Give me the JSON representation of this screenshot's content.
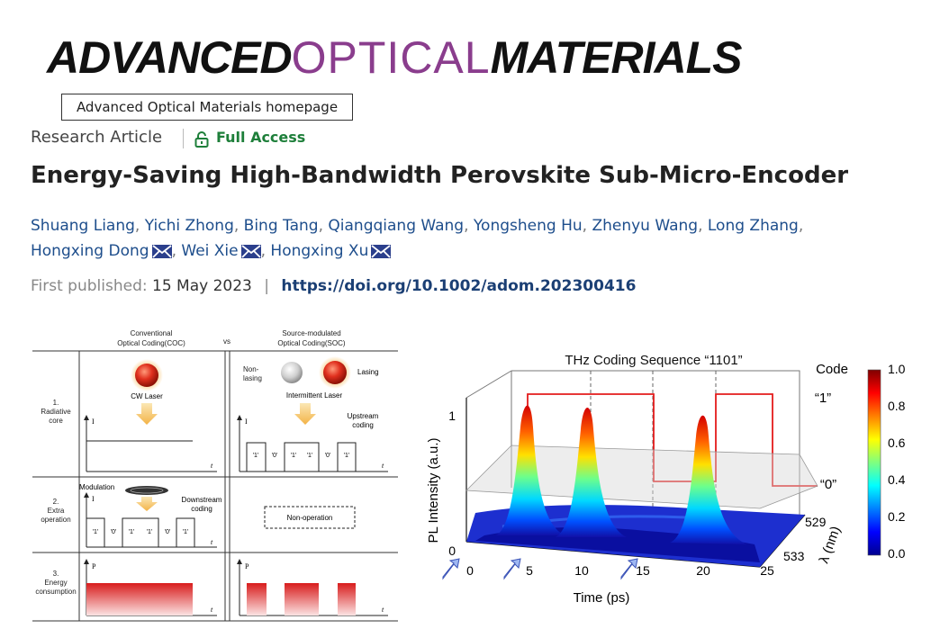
{
  "logo": {
    "part1": "ADVANCED",
    "part2": "OPTICAL",
    "part3": "MATERIALS"
  },
  "homepage_button": "Advanced Optical Materials homepage",
  "article_type": "Research Article",
  "access": "Full Access",
  "title": "Energy-Saving High-Bandwidth Perovskite Sub-Micro-Encoder",
  "authors": [
    "Shuang Liang",
    "Yichi Zhong",
    "Bing Tang",
    "Qiangqiang Wang",
    "Yongsheng Hu",
    "Zhenyu Wang",
    "Long Zhang",
    "Hongxing Dong",
    "Wei Xie",
    "Hongxing Xu"
  ],
  "published": {
    "label": "First published:",
    "date": "15 May 2023",
    "separator": "|",
    "doi": "https://doi.org/10.1002/adom.202300416"
  },
  "figure_left": {
    "col1_header": "Conventional\nOptical Coding(COC)",
    "vs": "vs",
    "col2_header": "Source-modulated\nOptical Coding(SOC)",
    "row1": "1.\nRadiative\ncore",
    "row2": "2.\nExtra\noperation",
    "row3": "3.\nEnergy\nconsumption",
    "cw_laser": "CW Laser",
    "non_lasing": "Non-\nlasing",
    "lasing": "Lasing",
    "intermittent": "Intermittent Laser",
    "upstream": "Upstream\ncoding",
    "downstream": "Downstream\ncoding",
    "modulation": "Modulation",
    "non_operation": "Non-operation",
    "axis_I": "I",
    "axis_P": "P",
    "axis_t": "t",
    "codes_soc": [
      "'1'",
      "'0'",
      "'1'",
      "'1'",
      "'0'",
      "'1'"
    ],
    "codes_coc": [
      "'1'",
      "'0'",
      "'1'",
      "'1'",
      "'0'",
      "'1'"
    ]
  },
  "chart_data": {
    "type": "surface-3d",
    "title": "THz Coding Sequence “1101”",
    "xlabel": "Time (ps)",
    "ylabel": "PL Intensity (a.u.)",
    "zlabel": "λ (nm)",
    "x_ticks": [
      "0",
      "5",
      "10",
      "15",
      "20",
      "25"
    ],
    "y_ticks": [
      "0",
      "1"
    ],
    "z_ticks": [
      "529",
      "533"
    ],
    "code_label": "Code",
    "code_levels": [
      "“1”",
      "“0”"
    ],
    "code_sequence": [
      1,
      1,
      0,
      1
    ],
    "peaks_ps": [
      5,
      10,
      20
    ],
    "colorbar": {
      "ticks": [
        "1.0",
        "0.8",
        "0.6",
        "0.4",
        "0.2",
        "0.0"
      ],
      "range": [
        0,
        1
      ]
    }
  }
}
